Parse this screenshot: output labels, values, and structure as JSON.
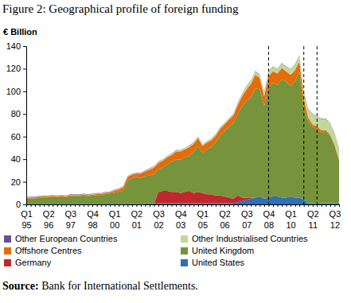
{
  "chart_data": {
    "type": "area",
    "stacked": true,
    "title": "Figure 2: Geographical profile of foreign funding",
    "y_label": "€ Billion",
    "source": "Source: Bank for International Settlements.",
    "legend": "bottom",
    "grid": false,
    "ylim": [
      0,
      140
    ],
    "yticks": [
      0,
      20,
      40,
      60,
      80,
      100,
      120,
      140
    ],
    "vlines": [
      55,
      63,
      66
    ],
    "categories": [
      "Q1 95",
      null,
      null,
      null,
      null,
      "Q2 96",
      null,
      null,
      null,
      null,
      "Q3 97",
      null,
      null,
      null,
      null,
      "Q4 98",
      null,
      null,
      null,
      null,
      "Q1 00",
      null,
      null,
      null,
      null,
      "Q2 01",
      null,
      null,
      null,
      null,
      "Q3 02",
      null,
      null,
      null,
      null,
      "Q4 03",
      null,
      null,
      null,
      null,
      "Q1 05",
      null,
      null,
      null,
      null,
      "Q2 06",
      null,
      null,
      null,
      null,
      "Q3 07",
      null,
      null,
      null,
      null,
      "Q4 08",
      null,
      null,
      null,
      null,
      "Q1 10",
      null,
      null,
      null,
      null,
      "Q2 11",
      null,
      null,
      null,
      null,
      "Q3 12",
      null
    ],
    "series": [
      {
        "name": "Other European Countries",
        "color": "#6b4f96",
        "values": [
          0.3,
          0.3,
          0.3,
          0.3,
          0.3,
          0.3,
          0.3,
          0.3,
          0.3,
          0.3,
          0.3,
          0.3,
          0.3,
          0.3,
          0.3,
          0.3,
          0.3,
          0.3,
          0.3,
          0.3,
          0.3,
          0.3,
          0.3,
          0.3,
          0.3,
          0.3,
          0.3,
          0.3,
          0.3,
          0.3,
          0.3,
          0.3,
          0.3,
          0.3,
          0.3,
          0.3,
          0.3,
          0.3,
          0.3,
          0.3,
          0.3,
          0.3,
          0.3,
          0.3,
          0.3,
          0.3,
          0.3,
          0.3,
          0.3,
          0.3,
          0.3,
          0.3,
          0.3,
          0.3,
          0.3,
          0.3,
          0.3,
          0.3,
          0.3,
          0.3,
          0.3,
          0.3,
          0.3,
          0.3,
          0.3,
          0.3,
          0.3,
          0.3,
          0.3,
          0.3,
          0.3,
          0.3
        ]
      },
      {
        "name": "Other Industrialised Countries",
        "color": "#c3d69b",
        "values": [
          0.5,
          0.5,
          0.5,
          0.5,
          0.5,
          0.5,
          0.5,
          0.5,
          0.5,
          0.5,
          0.5,
          0.5,
          0.5,
          0.5,
          0.5,
          0.5,
          0.5,
          0.5,
          0.5,
          0.5,
          0.5,
          0.5,
          0.5,
          0.5,
          0.5,
          0.5,
          0.5,
          0.5,
          1,
          1,
          1,
          1,
          1,
          1,
          1,
          1,
          1,
          1,
          1,
          1,
          1,
          1,
          1,
          1,
          1,
          1,
          1,
          1,
          2,
          2,
          3,
          3,
          3,
          3,
          4,
          4,
          4,
          4,
          4,
          4,
          5,
          5,
          5,
          6,
          8,
          9,
          9,
          10,
          10,
          10,
          10,
          10
        ]
      },
      {
        "name": "Offshore Centres",
        "color": "#e46c0a",
        "values": [
          1,
          1,
          1,
          1,
          1,
          1,
          1,
          1,
          1,
          1,
          1,
          1,
          1,
          1,
          1,
          1,
          1,
          1,
          1,
          1,
          2,
          2,
          3,
          3,
          3,
          3,
          4,
          4,
          5,
          6,
          6,
          6,
          6,
          6,
          7,
          7,
          7,
          8,
          7,
          7,
          6,
          6,
          6,
          6,
          6,
          6,
          6,
          7,
          8,
          9,
          10,
          12,
          12,
          10,
          9,
          10,
          10,
          10,
          10,
          9,
          10,
          10,
          9,
          8,
          3,
          2,
          2,
          2,
          1,
          1,
          1,
          1
        ]
      },
      {
        "name": "United Kingdom",
        "color": "#77933c",
        "values": [
          4.2,
          4.7,
          4.7,
          5.2,
          5.7,
          5.7,
          6.2,
          5.7,
          6.2,
          5.7,
          6.7,
          6.7,
          6.7,
          7.2,
          6.7,
          7.2,
          7.7,
          7.7,
          8.7,
          9.2,
          9.7,
          10.7,
          11.7,
          20.7,
          22.7,
          23.7,
          22.7,
          24.7,
          24.7,
          25.7,
          19.7,
          20.7,
          23.7,
          26.7,
          28.7,
          29.7,
          30.7,
          30.7,
          36.7,
          40.7,
          35.7,
          39.7,
          41.7,
          46.7,
          52.7,
          57.7,
          62.7,
          66.7,
          71.7,
          80.7,
          85.7,
          88.7,
          96.7,
          94.7,
          81.7,
          97.7,
          100.7,
          98.7,
          104.7,
          102.7,
          97.7,
          102.7,
          111.7,
          81.7,
          72.7,
          67.7,
          65.7,
          62.7,
          63.7,
          59.7,
          50.7,
          37.7
        ]
      },
      {
        "name": "Germany",
        "color": "#c0282d",
        "values": [
          0,
          0,
          0,
          0,
          0,
          0,
          0,
          0,
          0,
          0,
          0,
          0,
          0,
          0,
          0,
          0,
          0,
          0,
          0,
          0,
          0,
          0,
          0,
          0,
          0,
          0,
          0,
          0,
          0,
          0,
          10,
          11,
          11,
          10,
          10,
          9,
          10,
          11,
          9,
          10,
          9,
          8,
          8,
          7,
          7,
          6,
          5,
          4,
          6,
          3,
          2,
          1,
          0,
          0,
          0,
          0,
          0,
          0,
          0,
          0,
          0,
          0,
          0,
          0,
          0,
          0,
          0,
          0,
          0,
          0,
          0,
          0
        ]
      },
      {
        "name": "United States",
        "color": "#2e6fb7",
        "values": [
          0.5,
          0.5,
          0.5,
          0.5,
          0.5,
          0.5,
          0.5,
          0.5,
          0.5,
          0.5,
          0.5,
          0.5,
          0.5,
          0.5,
          0.5,
          0.5,
          0.5,
          0.5,
          0.5,
          0.5,
          0.5,
          0.5,
          0.5,
          0.5,
          0.5,
          0.5,
          0.5,
          0.5,
          1,
          1,
          1,
          1,
          1,
          1,
          1,
          1,
          1,
          1,
          1,
          1,
          1,
          1,
          1,
          1,
          1,
          1,
          1,
          1,
          2,
          3,
          4,
          5,
          6,
          7,
          5,
          6,
          7,
          7,
          6,
          6,
          7,
          6,
          6,
          4,
          1,
          1,
          1,
          1,
          1,
          1,
          1,
          1
        ]
      }
    ]
  }
}
